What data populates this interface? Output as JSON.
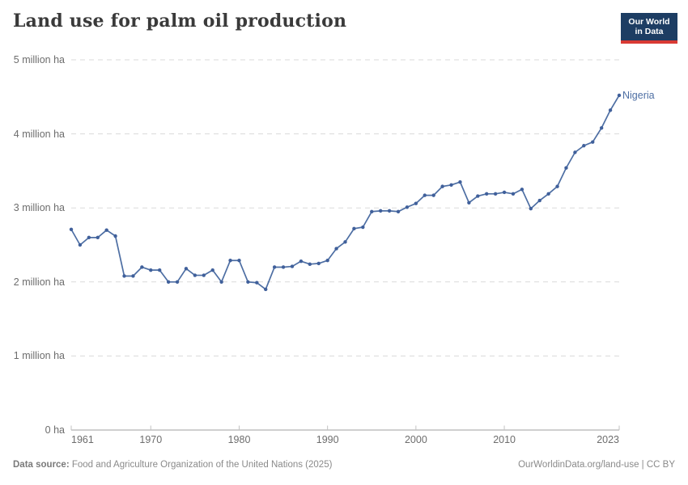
{
  "header": {
    "title": "Land use for palm oil production",
    "logo": {
      "line1": "Our World",
      "line2": "in Data"
    }
  },
  "colors": {
    "line": "#4d6ea3",
    "marker": "#40609b",
    "gridline": "#dadada",
    "axis": "#9f9f9f",
    "tick": "#c2c2c2",
    "logo_navy": "#1d3d63",
    "logo_red": "#d93a34",
    "label_gray": "#6d6d6d"
  },
  "chart_data": {
    "type": "line",
    "title": "Land use for palm oil production",
    "ylabel": "",
    "xlabel": "",
    "unit": "million ha",
    "ylim": [
      0,
      5
    ],
    "xlim": [
      1961,
      2023
    ],
    "grid": true,
    "legend_position": "end-of-line",
    "yticks": [
      {
        "value": 0,
        "label": "0 ha"
      },
      {
        "value": 1,
        "label": "1 million ha"
      },
      {
        "value": 2,
        "label": "2 million ha"
      },
      {
        "value": 3,
        "label": "3 million ha"
      },
      {
        "value": 4,
        "label": "4 million ha"
      },
      {
        "value": 5,
        "label": "5 million ha"
      }
    ],
    "xticks": [
      "1961",
      "1970",
      "1980",
      "1990",
      "2000",
      "2010",
      "2023"
    ],
    "series": [
      {
        "name": "Nigeria",
        "color": "#4d6ea3",
        "marker_color": "#40609b",
        "years": [
          1961,
          1962,
          1963,
          1964,
          1965,
          1966,
          1967,
          1968,
          1969,
          1970,
          1971,
          1972,
          1973,
          1974,
          1975,
          1976,
          1977,
          1978,
          1979,
          1980,
          1981,
          1982,
          1983,
          1984,
          1985,
          1986,
          1987,
          1988,
          1989,
          1990,
          1991,
          1992,
          1993,
          1994,
          1995,
          1996,
          1997,
          1998,
          1999,
          2000,
          2001,
          2002,
          2003,
          2004,
          2005,
          2006,
          2007,
          2008,
          2009,
          2010,
          2011,
          2012,
          2013,
          2014,
          2015,
          2016,
          2017,
          2018,
          2019,
          2020,
          2021,
          2022,
          2023
        ],
        "values": [
          2.71,
          2.5,
          2.6,
          2.6,
          2.7,
          2.62,
          2.08,
          2.08,
          2.2,
          2.16,
          2.16,
          2.0,
          2.0,
          2.18,
          2.09,
          2.09,
          2.16,
          2.0,
          2.29,
          2.29,
          2.0,
          1.99,
          1.9,
          2.2,
          2.2,
          2.21,
          2.28,
          2.24,
          2.25,
          2.29,
          2.45,
          2.54,
          2.72,
          2.74,
          2.95,
          2.96,
          2.96,
          2.95,
          3.01,
          3.06,
          3.17,
          3.17,
          3.29,
          3.31,
          3.35,
          3.07,
          3.16,
          3.19,
          3.19,
          3.21,
          3.19,
          3.25,
          2.99,
          3.1,
          3.19,
          3.29,
          3.54,
          3.75,
          3.84,
          3.89,
          4.08,
          4.32,
          4.52
        ]
      }
    ]
  },
  "footer": {
    "source_label": "Data source:",
    "source_text": " Food and Agriculture Organization of the United Nations (2025)",
    "link_text": "OurWorldinData.org/land-use | CC BY"
  }
}
